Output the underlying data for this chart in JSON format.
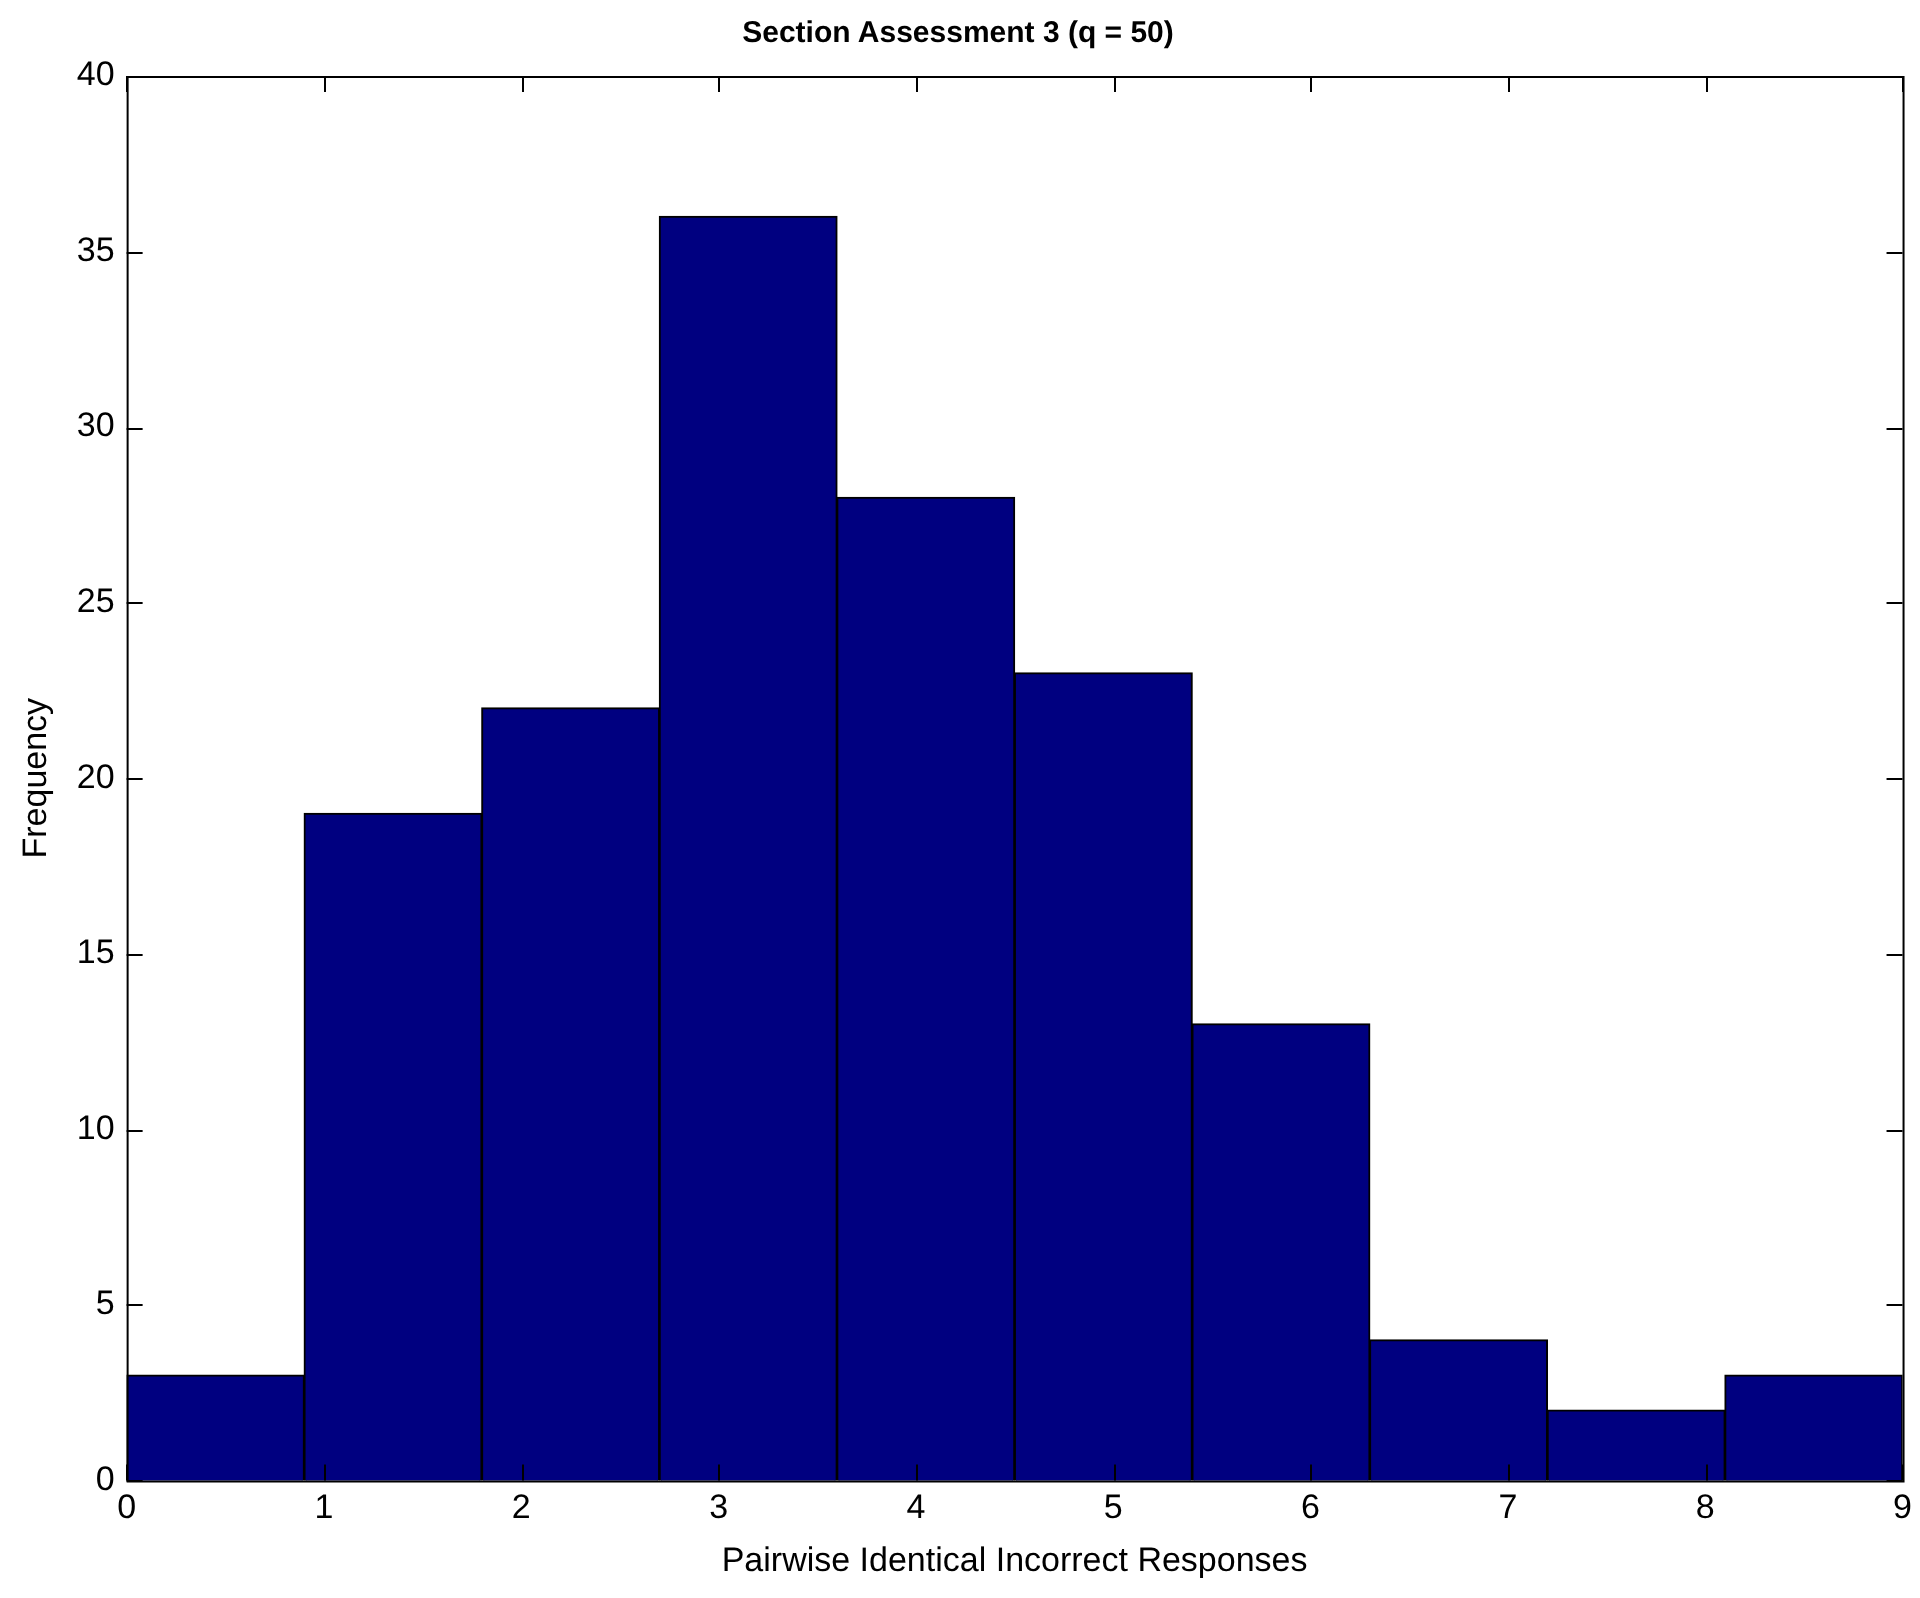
{
  "chart_data": {
    "type": "histogram",
    "title": "Section Assessment 3 (q = 50)",
    "xlabel": "Pairwise Identical Incorrect Responses",
    "ylabel": "Frequency",
    "bins": [
      0,
      0.9,
      1.8,
      2.7,
      3.6,
      4.5,
      5.4,
      6.3,
      7.2,
      8.1,
      9
    ],
    "values": [
      3,
      19,
      22,
      36,
      28,
      23,
      13,
      4,
      2,
      3
    ],
    "color": "#000080",
    "xlim": [
      0,
      9
    ],
    "xticks": [
      0,
      1,
      2,
      3,
      4,
      5,
      6,
      7,
      8,
      9
    ],
    "ylim": [
      0,
      40
    ],
    "yticks": [
      0,
      5,
      10,
      15,
      20,
      25,
      30,
      35,
      40
    ],
    "grid": false,
    "legend": false
  }
}
